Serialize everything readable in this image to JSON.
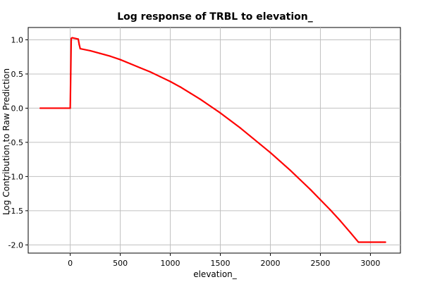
{
  "chart_data": {
    "type": "line",
    "title": "Log response of TRBL to elevation_",
    "xlabel": "elevation_",
    "ylabel": "Log Contribution to Raw Prediction",
    "xlim": [
      -420,
      3300
    ],
    "ylim": [
      -2.12,
      1.18
    ],
    "x_ticks": [
      0,
      500,
      1000,
      1500,
      2000,
      2500,
      3000
    ],
    "x_tick_labels": [
      "0",
      "500",
      "1000",
      "1500",
      "2000",
      "2500",
      "3000"
    ],
    "y_ticks": [
      1.0,
      0.5,
      0.0,
      -0.5,
      -1.0,
      -1.5,
      -2.0
    ],
    "y_tick_labels": [
      "1.0",
      "0.5",
      "0.0",
      "-0.5",
      "-1.0",
      "-1.5",
      "-2.0"
    ],
    "grid": true,
    "series": [
      {
        "color": "#ff0000",
        "x": [
          -300,
          -50,
          0,
          5,
          10,
          20,
          80,
          90,
          100,
          200,
          300,
          400,
          500,
          600,
          700,
          800,
          900,
          1000,
          1100,
          1200,
          1300,
          1400,
          1500,
          1600,
          1700,
          1800,
          1900,
          2000,
          2100,
          2200,
          2300,
          2400,
          2500,
          2600,
          2700,
          2800,
          2880,
          3000,
          3100,
          3150
        ],
        "y": [
          0.0,
          0.0,
          0.0,
          0.5,
          1.02,
          1.03,
          1.01,
          0.93,
          0.87,
          0.84,
          0.8,
          0.76,
          0.71,
          0.65,
          0.59,
          0.53,
          0.46,
          0.39,
          0.31,
          0.22,
          0.13,
          0.03,
          -0.07,
          -0.18,
          -0.29,
          -0.41,
          -0.53,
          -0.65,
          -0.78,
          -0.91,
          -1.05,
          -1.19,
          -1.34,
          -1.49,
          -1.65,
          -1.82,
          -1.96,
          -1.96,
          -1.96,
          -1.96
        ]
      }
    ]
  }
}
